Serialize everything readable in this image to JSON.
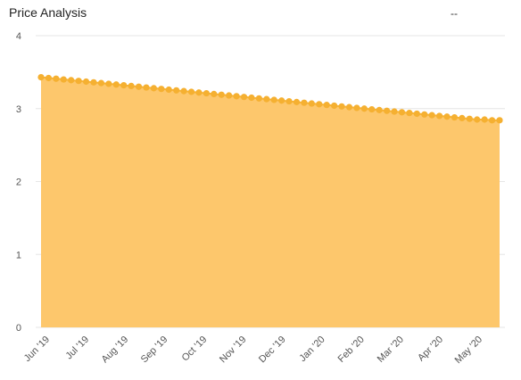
{
  "header": {
    "title": "Price Analysis",
    "right_value": "--"
  },
  "chart_data": {
    "type": "area",
    "title": "Price Analysis",
    "xlabel": "",
    "ylabel": "",
    "ylim": [
      0,
      4
    ],
    "yticks": [
      "0",
      "1",
      "2",
      "3",
      "4"
    ],
    "grid": true,
    "x_tick_labels": [
      "Jun '19",
      "Jul '19",
      "Aug '19",
      "Sep '19",
      "Oct '19",
      "Nov '19",
      "Dec '19",
      "Jan '20",
      "Feb '20",
      "Mar '20",
      "Apr '20",
      "May '20"
    ],
    "colors": {
      "fill": "#fdc76c",
      "line": "#f7b335",
      "marker": "#f5b031",
      "grid": "#e6e6e6"
    },
    "series": [
      {
        "values": [
          3.43,
          3.42,
          3.41,
          3.4,
          3.39,
          3.38,
          3.37,
          3.36,
          3.35,
          3.34,
          3.33,
          3.32,
          3.31,
          3.3,
          3.29,
          3.28,
          3.27,
          3.26,
          3.25,
          3.24,
          3.23,
          3.22,
          3.21,
          3.2,
          3.19,
          3.18,
          3.17,
          3.16,
          3.15,
          3.14,
          3.13,
          3.12,
          3.11,
          3.1,
          3.09,
          3.08,
          3.07,
          3.06,
          3.05,
          3.04,
          3.03,
          3.02,
          3.01,
          3.0,
          2.99,
          2.98,
          2.97,
          2.96,
          2.95,
          2.94,
          2.93,
          2.92,
          2.91,
          2.9,
          2.89,
          2.88,
          2.87,
          2.86,
          2.85,
          2.85,
          2.84,
          2.84
        ]
      }
    ]
  }
}
